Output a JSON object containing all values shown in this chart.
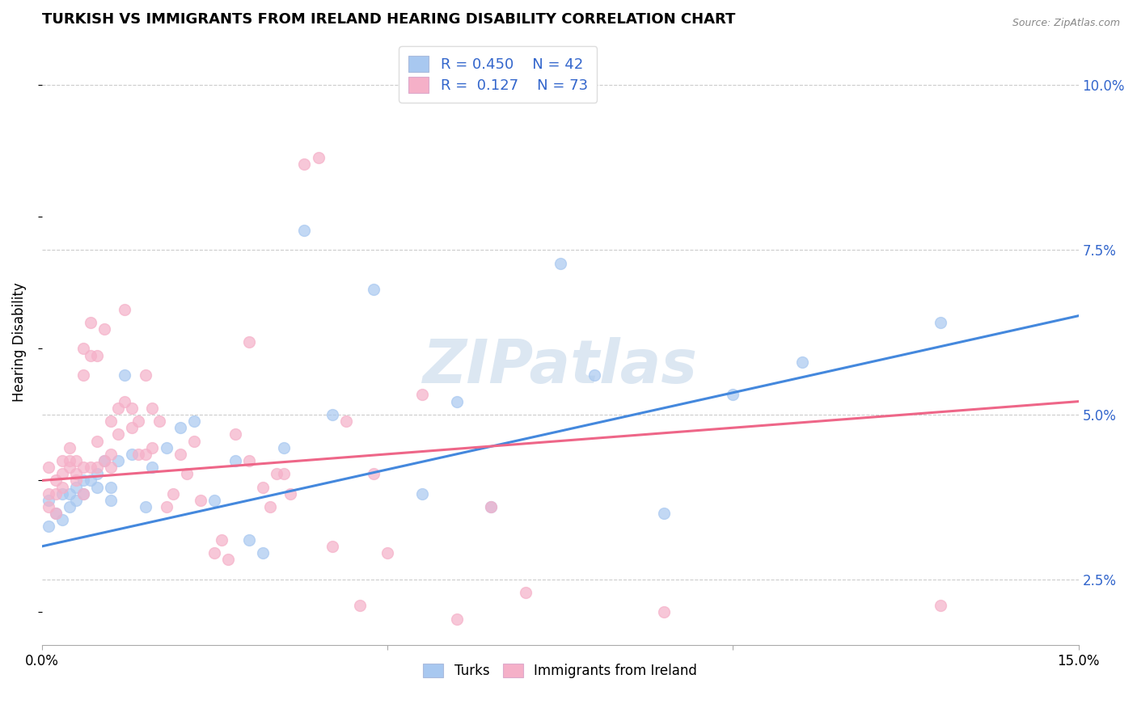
{
  "title": "TURKISH VS IMMIGRANTS FROM IRELAND HEARING DISABILITY CORRELATION CHART",
  "source": "Source: ZipAtlas.com",
  "ylabel": "Hearing Disability",
  "watermark": "ZIPatlas",
  "blue_R": 0.45,
  "blue_N": 42,
  "pink_R": 0.127,
  "pink_N": 73,
  "blue_color": "#A8C8F0",
  "pink_color": "#F5B0C8",
  "blue_line_color": "#4488DD",
  "pink_line_color": "#EE6688",
  "legend_R_color": "#3366CC",
  "background_color": "#FFFFFF",
  "grid_color": "#CCCCCC",
  "right_axis_color": "#3366CC",
  "xmin": 0.0,
  "xmax": 0.15,
  "ymin": 0.015,
  "ymax": 0.107,
  "blue_line_x0": 0.0,
  "blue_line_y0": 0.03,
  "blue_line_x1": 0.15,
  "blue_line_y1": 0.065,
  "pink_line_x0": 0.0,
  "pink_line_y0": 0.04,
  "pink_line_x1": 0.15,
  "pink_line_y1": 0.052,
  "blue_points_x": [
    0.001,
    0.001,
    0.002,
    0.003,
    0.003,
    0.004,
    0.004,
    0.005,
    0.005,
    0.006,
    0.006,
    0.007,
    0.008,
    0.008,
    0.009,
    0.01,
    0.01,
    0.011,
    0.012,
    0.013,
    0.015,
    0.016,
    0.018,
    0.02,
    0.022,
    0.025,
    0.028,
    0.03,
    0.032,
    0.035,
    0.038,
    0.042,
    0.048,
    0.055,
    0.06,
    0.065,
    0.075,
    0.08,
    0.09,
    0.1,
    0.11,
    0.13
  ],
  "blue_points_y": [
    0.033,
    0.037,
    0.035,
    0.038,
    0.034,
    0.038,
    0.036,
    0.039,
    0.037,
    0.04,
    0.038,
    0.04,
    0.041,
    0.039,
    0.043,
    0.039,
    0.037,
    0.043,
    0.056,
    0.044,
    0.036,
    0.042,
    0.045,
    0.048,
    0.049,
    0.037,
    0.043,
    0.031,
    0.029,
    0.045,
    0.078,
    0.05,
    0.069,
    0.038,
    0.052,
    0.036,
    0.073,
    0.056,
    0.035,
    0.053,
    0.058,
    0.064
  ],
  "pink_points_x": [
    0.001,
    0.001,
    0.001,
    0.002,
    0.002,
    0.002,
    0.003,
    0.003,
    0.003,
    0.004,
    0.004,
    0.004,
    0.005,
    0.005,
    0.005,
    0.006,
    0.006,
    0.006,
    0.006,
    0.007,
    0.007,
    0.007,
    0.008,
    0.008,
    0.008,
    0.009,
    0.009,
    0.01,
    0.01,
    0.01,
    0.011,
    0.011,
    0.012,
    0.012,
    0.013,
    0.013,
    0.014,
    0.014,
    0.015,
    0.015,
    0.016,
    0.016,
    0.017,
    0.018,
    0.019,
    0.02,
    0.021,
    0.022,
    0.023,
    0.025,
    0.026,
    0.027,
    0.028,
    0.03,
    0.03,
    0.032,
    0.033,
    0.034,
    0.035,
    0.036,
    0.038,
    0.04,
    0.042,
    0.044,
    0.046,
    0.048,
    0.05,
    0.055,
    0.06,
    0.065,
    0.07,
    0.09,
    0.13
  ],
  "pink_points_y": [
    0.036,
    0.038,
    0.042,
    0.04,
    0.038,
    0.035,
    0.041,
    0.039,
    0.043,
    0.043,
    0.042,
    0.045,
    0.043,
    0.041,
    0.04,
    0.056,
    0.06,
    0.042,
    0.038,
    0.064,
    0.059,
    0.042,
    0.046,
    0.059,
    0.042,
    0.063,
    0.043,
    0.049,
    0.044,
    0.042,
    0.051,
    0.047,
    0.066,
    0.052,
    0.048,
    0.051,
    0.044,
    0.049,
    0.056,
    0.044,
    0.045,
    0.051,
    0.049,
    0.036,
    0.038,
    0.044,
    0.041,
    0.046,
    0.037,
    0.029,
    0.031,
    0.028,
    0.047,
    0.061,
    0.043,
    0.039,
    0.036,
    0.041,
    0.041,
    0.038,
    0.088,
    0.089,
    0.03,
    0.049,
    0.021,
    0.041,
    0.029,
    0.053,
    0.019,
    0.036,
    0.023,
    0.02,
    0.021
  ],
  "ytick_positions": [
    0.025,
    0.05,
    0.075,
    0.1
  ],
  "ytick_labels": [
    "2.5%",
    "5.0%",
    "7.5%",
    "10.0%"
  ]
}
